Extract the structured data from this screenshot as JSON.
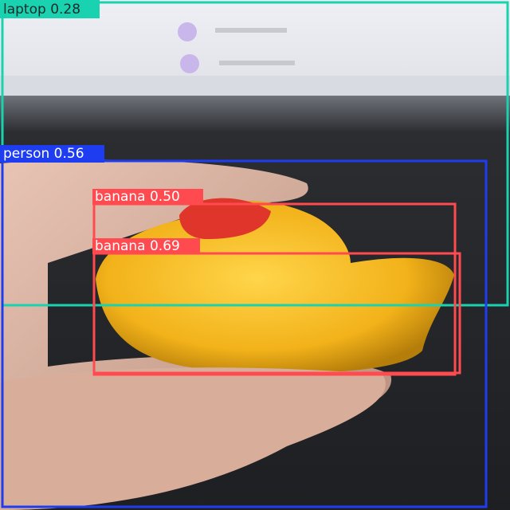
{
  "detections": [
    {
      "label": "laptop 0.28"
    },
    {
      "label": "person 0.56"
    },
    {
      "label": "banana 0.50"
    },
    {
      "label": "banana 0.69"
    }
  ]
}
